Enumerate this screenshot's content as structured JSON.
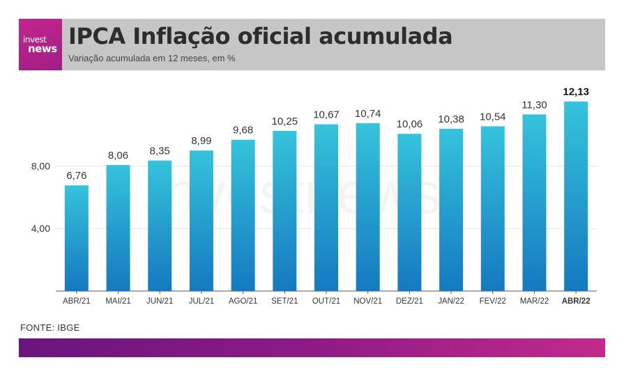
{
  "header": {
    "logo_line1": "invest",
    "logo_line2": "news",
    "title": "IPCA Inflação oficial acumulada",
    "subtitle": "Variação acumulada em 12 meses, em %"
  },
  "watermark": "investnews",
  "source": "FONTE: IBGE",
  "colors": {
    "bar_top": "#35c3dc",
    "bar_bottom": "#1579c0",
    "header_bg": "#c6c6c6",
    "brand_magenta": "#c2258f",
    "footer_start": "#6a157e",
    "footer_end": "#c22a8c"
  },
  "chart_data": {
    "type": "bar",
    "categories": [
      "ABR/21",
      "MAI/21",
      "JUN/21",
      "JUL/21",
      "AGO/21",
      "SET/21",
      "OUT/21",
      "NOV/21",
      "DEZ/21",
      "JAN/22",
      "FEV/22",
      "MAR/22",
      "ABR/22"
    ],
    "values": [
      6.76,
      8.06,
      8.35,
      8.99,
      9.68,
      10.25,
      10.67,
      10.74,
      10.06,
      10.38,
      10.54,
      11.3,
      12.13
    ],
    "value_labels": [
      "6,76",
      "8,06",
      "8,35",
      "8,99",
      "9,68",
      "10,25",
      "10,67",
      "10,74",
      "10,06",
      "10,38",
      "10,54",
      "11,30",
      "12,13"
    ],
    "highlight_index": 12,
    "yticks": [
      4,
      8
    ],
    "ytick_labels": [
      "4,00",
      "8,00"
    ],
    "ylim": [
      0,
      12.8
    ],
    "grid": true
  }
}
